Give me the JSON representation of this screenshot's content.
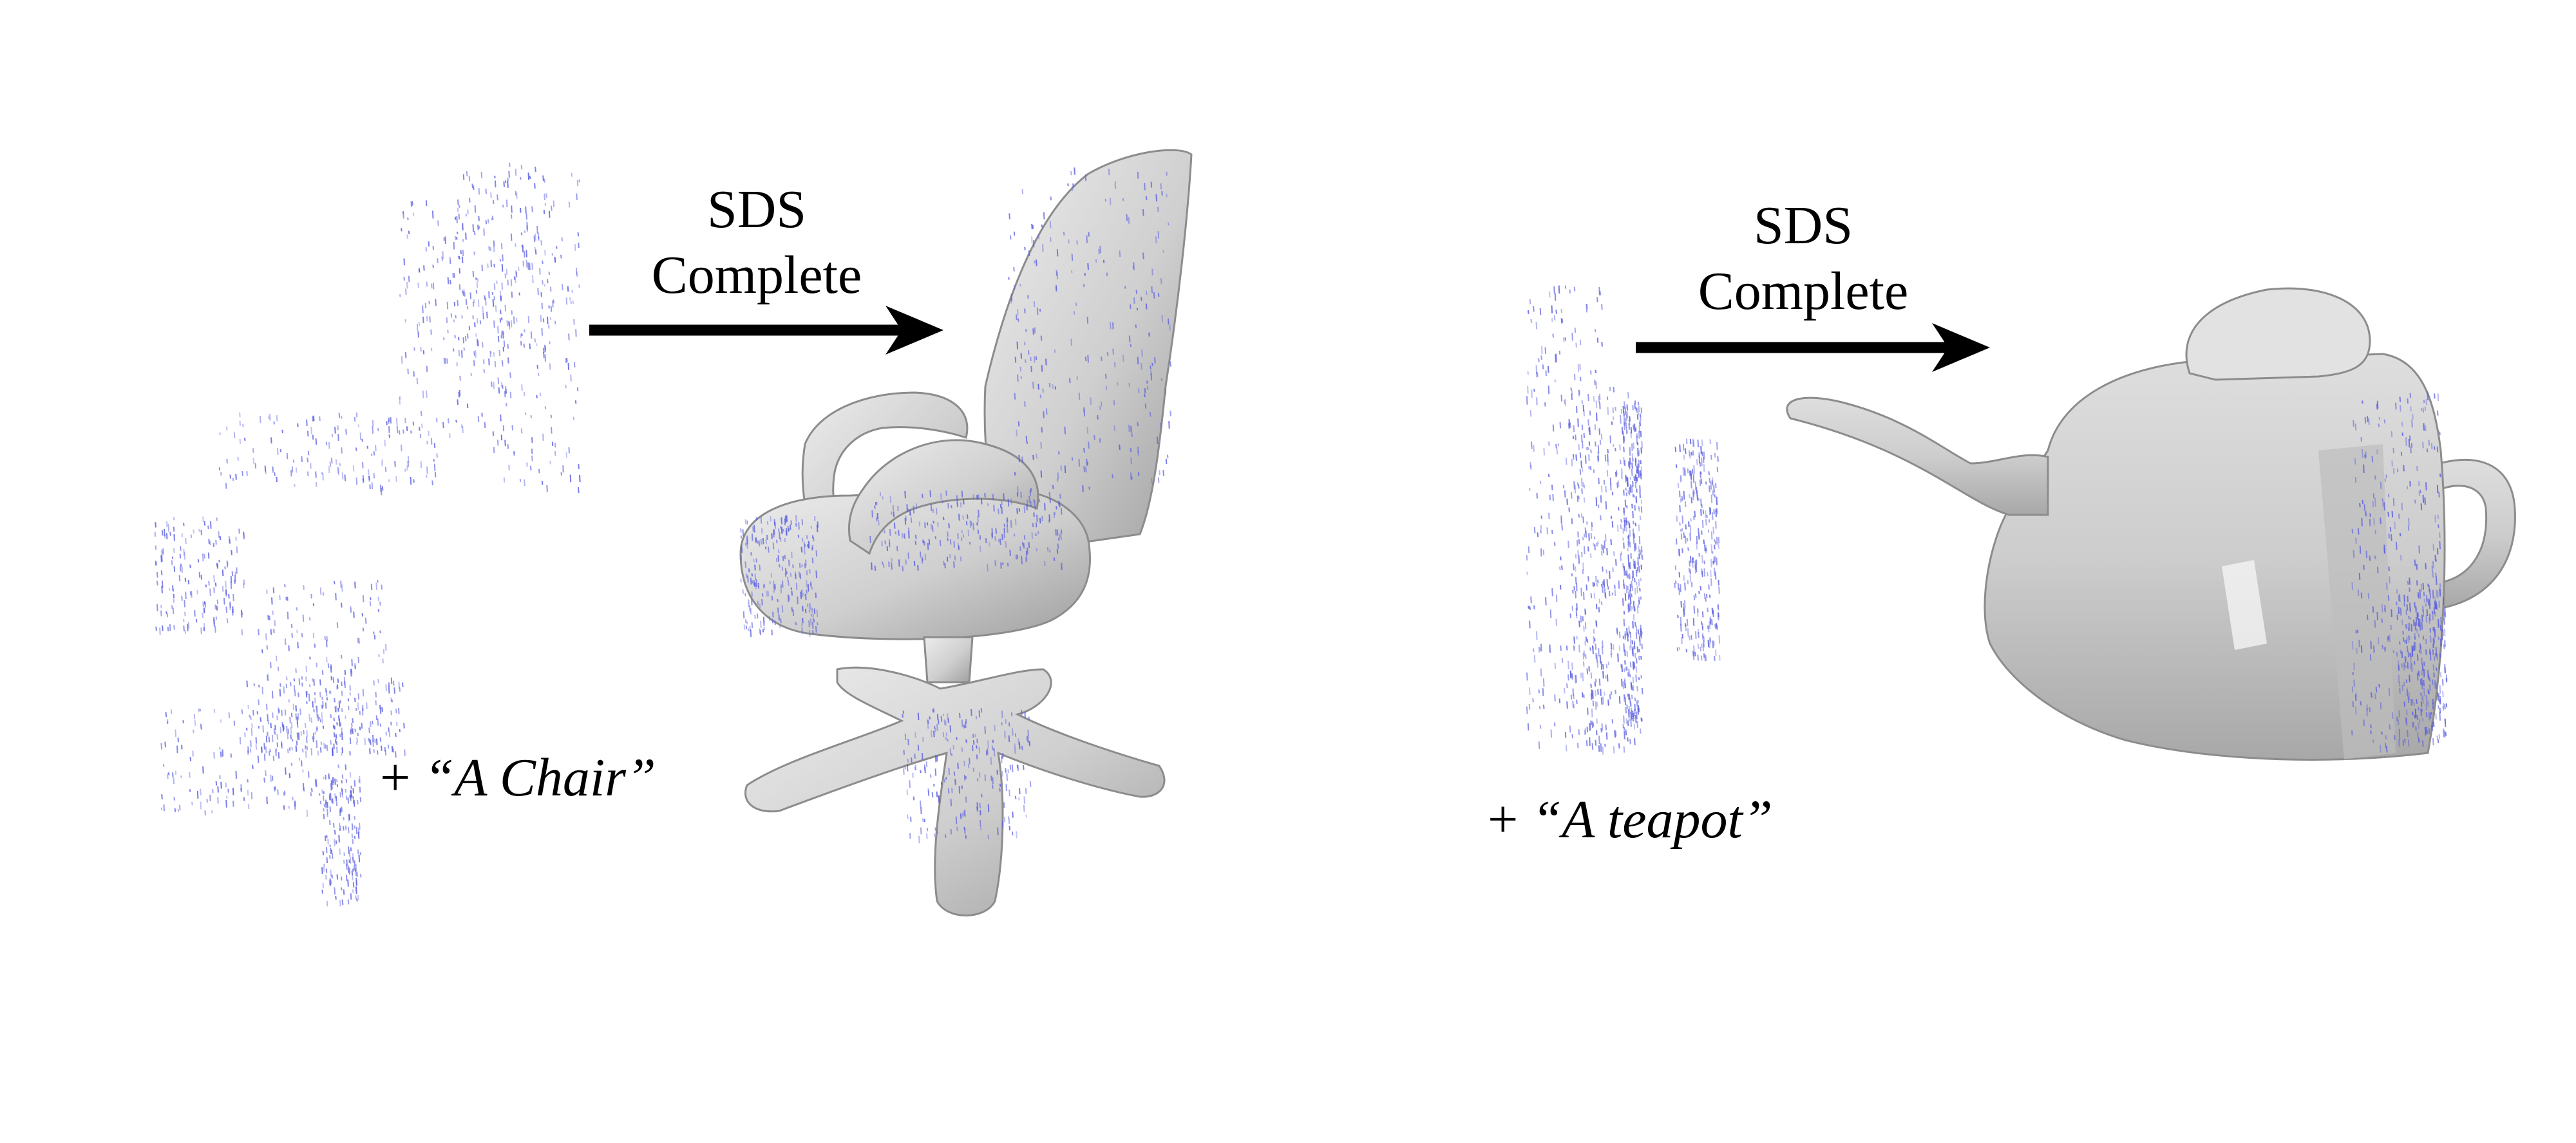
{
  "colors": {
    "point_cloud": "#5a5ee0",
    "mesh_fill": "#d9d9d9",
    "mesh_shade": "#a9a9a9",
    "mesh_edge": "#8c8c8c",
    "arrow": "#000000"
  },
  "panels": [
    {
      "arrow_line1": "SDS",
      "arrow_line2": "Complete",
      "prompt_prefix": "+",
      "prompt_text": "“A Chair”"
    },
    {
      "arrow_line1": "SDS",
      "arrow_line2": "Complete",
      "prompt_prefix": "+",
      "prompt_text": "“A teapot”"
    }
  ]
}
